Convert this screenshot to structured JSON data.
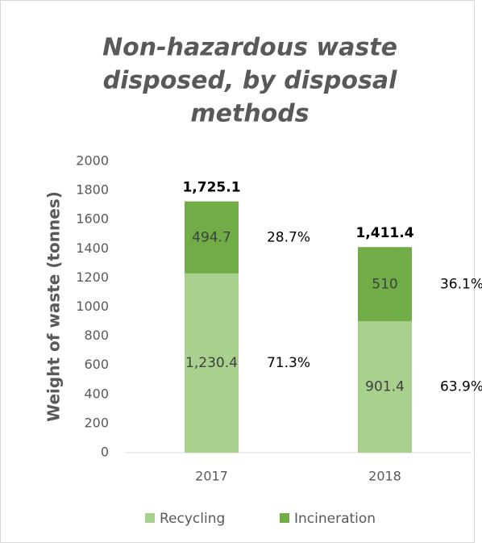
{
  "chart_data": {
    "type": "stacked_bar",
    "title": [
      "Non-hazardous waste",
      "disposed, by disposal",
      "methods"
    ],
    "y_label": "Weight of waste (tonnes)",
    "categories": [
      "2017",
      "2018"
    ],
    "series": [
      {
        "name": "Recycling",
        "color": "#a9d18e",
        "values": [
          1230.4,
          901.4
        ],
        "value_labels": [
          "1,230.4",
          "901.4"
        ],
        "percents": [
          71.3,
          63.9
        ],
        "percent_labels": [
          "71.3%",
          "63.9%"
        ]
      },
      {
        "name": "Incineration",
        "color": "#70ad47",
        "values": [
          494.7,
          510
        ],
        "value_labels": [
          "494.7",
          "510"
        ],
        "percents": [
          28.7,
          36.1
        ],
        "percent_labels": [
          "28.7%",
          "36.1%"
        ]
      }
    ],
    "totals": [
      1725.1,
      1411.4
    ],
    "total_labels": [
      "1,725.1",
      "1,411.4"
    ],
    "ylim": [
      0,
      2000
    ],
    "yticks": [
      0,
      200,
      400,
      600,
      800,
      1000,
      1200,
      1400,
      1600,
      1800,
      2000
    ],
    "legend": "bottom"
  }
}
